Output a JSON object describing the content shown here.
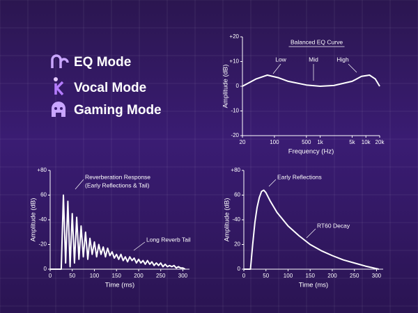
{
  "modes": [
    "EQ Mode",
    "Vocal Mode",
    "Gaming Mode"
  ],
  "chart_data": [
    {
      "type": "line",
      "title": "Balanced EQ Curve",
      "xlabel": "Frequency (Hz)",
      "ylabel": "Amplitude (dB)",
      "xscale": "log",
      "color": "#ffffff",
      "annotations": [
        "Low",
        "Mid",
        "High"
      ],
      "x": [
        20,
        40,
        70,
        120,
        200,
        500,
        1000,
        2000,
        5000,
        8000,
        12000,
        16000,
        20000
      ],
      "values": [
        0,
        3,
        4.5,
        3.5,
        2,
        0.5,
        0,
        0.3,
        2,
        4,
        4.5,
        3,
        0
      ],
      "xlim": [
        20,
        20000
      ],
      "xticks": [
        20,
        100,
        500,
        {
          "value": 1000,
          "label": "1k"
        },
        {
          "value": 5000,
          "label": "5k"
        },
        {
          "value": 10000,
          "label": "10k"
        },
        {
          "value": 20000,
          "label": "20k"
        }
      ],
      "ylim": [
        -20,
        20
      ],
      "yticks": [
        {
          "value": 20,
          "label": "+20"
        },
        {
          "value": 10,
          "label": "+10"
        },
        0,
        {
          "value": -10,
          "label": "-10"
        },
        {
          "value": -20,
          "label": "-20"
        }
      ]
    },
    {
      "type": "line",
      "xlabel": "Time (ms)",
      "ylabel": "Amplitude (dB)",
      "color": "#ffffff",
      "annotations": [
        "Reverberation Response",
        "(Early Reflections & Tail)",
        "Long Reverb Tail"
      ],
      "x": [
        0,
        25,
        30,
        35,
        40,
        45,
        50,
        55,
        60,
        65,
        70,
        75,
        80,
        85,
        90,
        95,
        100,
        105,
        110,
        115,
        120,
        125,
        130,
        135,
        140,
        145,
        150,
        155,
        160,
        165,
        170,
        175,
        180,
        185,
        190,
        195,
        200,
        205,
        210,
        215,
        220,
        225,
        230,
        235,
        240,
        245,
        250,
        255,
        260,
        265,
        270,
        275,
        280,
        285,
        290,
        295,
        300,
        305
      ],
      "values": [
        0,
        0,
        60,
        5,
        55,
        2,
        45,
        5,
        42,
        8,
        35,
        10,
        30,
        8,
        25,
        12,
        22,
        10,
        20,
        12,
        18,
        10,
        17,
        11,
        14,
        9,
        12,
        8,
        12,
        7,
        10,
        6,
        10,
        7,
        9,
        5,
        8,
        5,
        7,
        4,
        7,
        4,
        6,
        3,
        5,
        3,
        5,
        2,
        4,
        2,
        3,
        2,
        3,
        1,
        2,
        1,
        1,
        0
      ],
      "xlim": [
        0,
        315
      ],
      "xticks": [
        0,
        50,
        100,
        150,
        200,
        250,
        300
      ],
      "ylim": [
        0,
        80
      ],
      "yticks": [
        0,
        {
          "value": 20,
          "label": "-20"
        },
        {
          "value": 40,
          "label": "-40"
        },
        60,
        {
          "value": 80,
          "label": "+80"
        }
      ]
    },
    {
      "type": "line",
      "xlabel": "Time (ms)",
      "ylabel": "Amplitude (dB)",
      "color": "#ffffff",
      "annotations": [
        "Early Reflections",
        "RT60 Decay"
      ],
      "x": [
        0,
        15,
        20,
        25,
        30,
        35,
        40,
        45,
        50,
        60,
        75,
        100,
        125,
        150,
        175,
        200,
        225,
        250,
        275,
        305
      ],
      "values": [
        0,
        0,
        20,
        38,
        50,
        58,
        63,
        64,
        62,
        55,
        46,
        35,
        27,
        20,
        15,
        11,
        7.5,
        5,
        2.5,
        0
      ],
      "xlim": [
        0,
        315
      ],
      "xticks": [
        0,
        50,
        100,
        150,
        200,
        250,
        300
      ],
      "ylim": [
        0,
        80
      ],
      "yticks": [
        0,
        20,
        {
          "value": 40,
          "label": "-40"
        },
        60,
        {
          "value": 80,
          "label": "+80"
        }
      ]
    }
  ]
}
